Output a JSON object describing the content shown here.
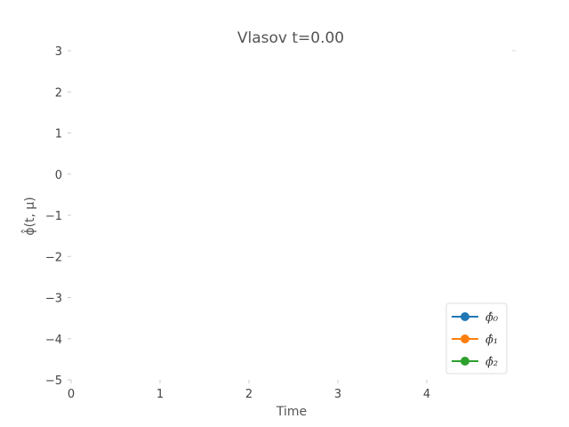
{
  "chart_data": {
    "type": "line",
    "title": "Vlasov t=0.00",
    "xlabel": "Time",
    "ylabel": "ϕ̂(t, μ)",
    "xlim": [
      0,
      5
    ],
    "ylim": [
      -5,
      3
    ],
    "xticks": [
      0,
      1,
      2,
      3,
      4
    ],
    "yticks": [
      3,
      2,
      1,
      0,
      -1,
      -2,
      -3,
      -4,
      -5
    ],
    "grid": false,
    "legend_position": "lower-right",
    "series": [
      {
        "name": "ϕ̂₀",
        "color": "#1f77b4",
        "x": [],
        "y": []
      },
      {
        "name": "ϕ̂₁",
        "color": "#ff7f0e",
        "x": [],
        "y": []
      },
      {
        "name": "ϕ̂₂",
        "color": "#2ca02c",
        "x": [],
        "y": []
      }
    ]
  }
}
